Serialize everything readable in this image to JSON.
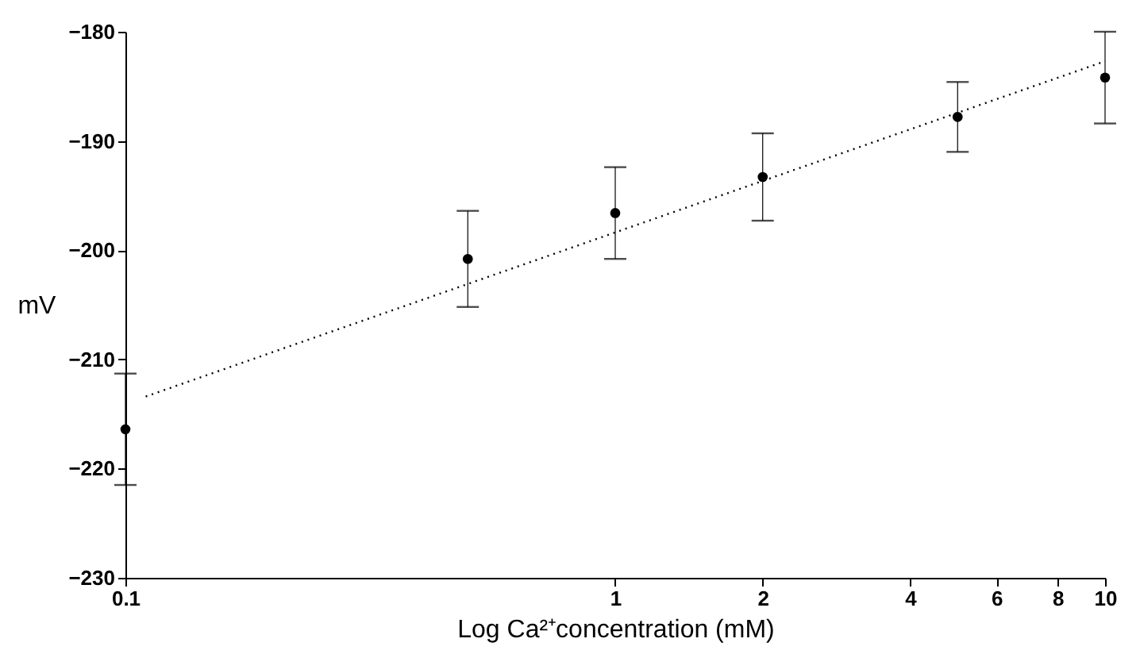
{
  "chart_data": {
    "type": "scatter",
    "xlabel": "Log Ca²⁺concentration (mM)",
    "ylabel": "mV",
    "x": [
      0.1,
      0.5,
      1,
      2,
      5,
      10
    ],
    "series": [
      {
        "type": "scatter",
        "color": "#000000",
        "values": [
          -216.4,
          -200.8,
          -196.6,
          -193.3,
          -187.8,
          -184.2
        ],
        "errors": [
          5.1,
          4.4,
          4.2,
          4.0,
          3.2,
          4.2
        ],
        "marker": "circle"
      },
      {
        "type": "line",
        "color": "#000000",
        "x": [
          0.11,
          10
        ],
        "values": [
          -213.4,
          -182.7
        ],
        "line_style": "dotted",
        "marker": "none"
      }
    ],
    "log": "x",
    "xlim": [
      0.1,
      10
    ],
    "xticks": [
      0.1,
      1,
      2,
      4,
      6,
      8,
      10
    ],
    "ylim": [
      -230,
      -180
    ],
    "yticks": [
      -230,
      -220,
      -210,
      -200,
      -190,
      -180
    ],
    "grid": false,
    "legend": false
  }
}
